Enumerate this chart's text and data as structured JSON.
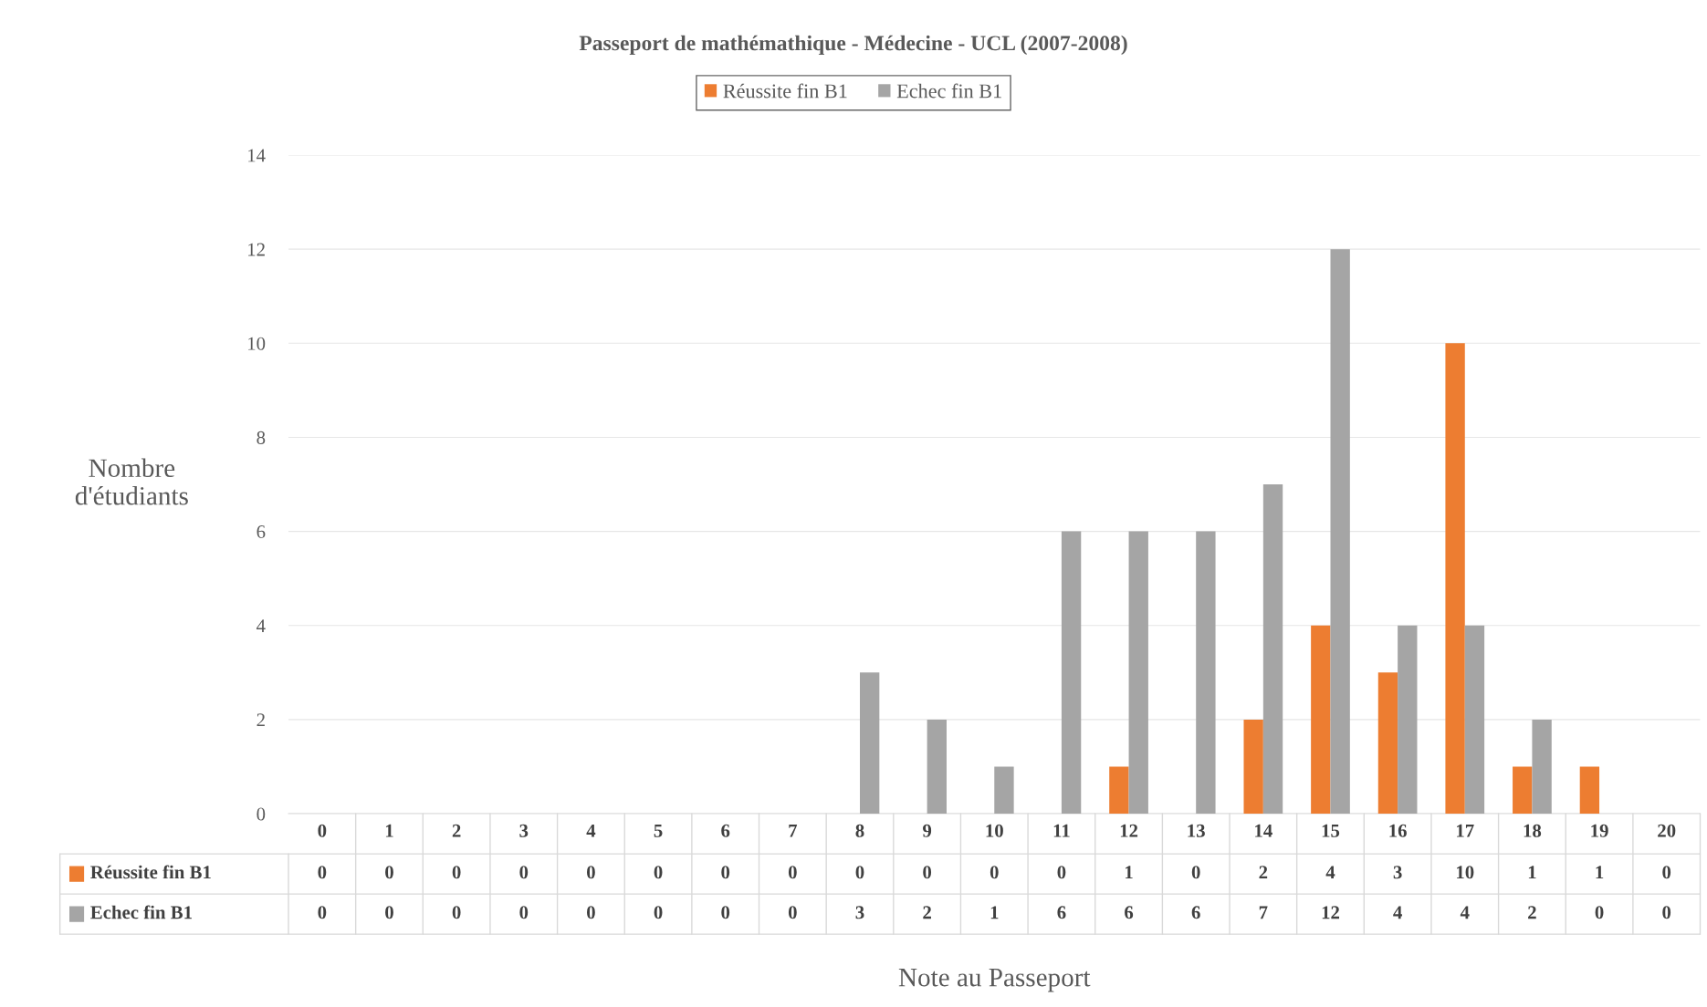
{
  "chart_data": {
    "type": "bar",
    "title": "Passeport de mathémathique - Médecine - UCL (2007-2008)",
    "xlabel": "Note au Passeport",
    "ylabel": "Nombre\nd'étudiants",
    "categories": [
      "0",
      "1",
      "2",
      "3",
      "4",
      "5",
      "6",
      "7",
      "8",
      "9",
      "10",
      "11",
      "12",
      "13",
      "14",
      "15",
      "16",
      "17",
      "18",
      "19",
      "20"
    ],
    "series": [
      {
        "name": "Réussite fin B1",
        "color": "#ed7d31",
        "values": [
          0,
          0,
          0,
          0,
          0,
          0,
          0,
          0,
          0,
          0,
          0,
          0,
          1,
          0,
          2,
          4,
          3,
          10,
          1,
          1,
          0
        ]
      },
      {
        "name": "Echec fin B1",
        "color": "#a5a5a5",
        "values": [
          0,
          0,
          0,
          0,
          0,
          0,
          0,
          0,
          3,
          2,
          1,
          6,
          6,
          6,
          7,
          12,
          4,
          4,
          2,
          0,
          0
        ]
      }
    ],
    "ylim": [
      0,
      14
    ],
    "yticks": [
      0,
      2,
      4,
      6,
      8,
      10,
      12,
      14
    ],
    "grid": "y",
    "legend": "top",
    "data_labels": true
  }
}
